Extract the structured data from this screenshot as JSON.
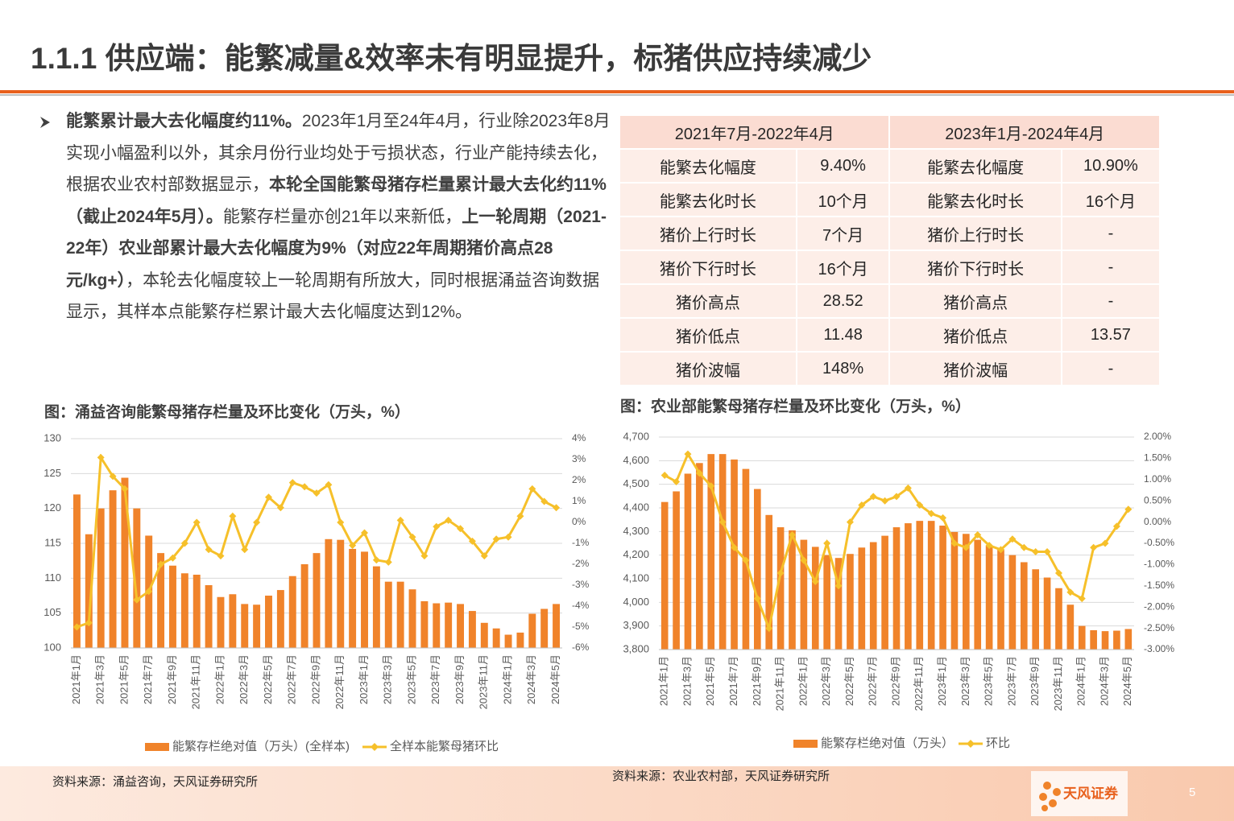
{
  "header": {
    "title": "1.1.1 供应端：能繁减量&效率未有明显提升，标猪供应持续减少"
  },
  "text": {
    "runs": [
      {
        "text": "能繁累计最大去化幅度约11%。",
        "bold": true
      },
      {
        "text": "2023年1月至24年4月，行业除2023年8月实现小幅盈利以外，其余月份行业均处于亏损状态，行业产能持续去化，根据农业农村部数据显示，",
        "bold": false
      },
      {
        "text": "本轮全国能繁母猪存栏量累计最大去化约11%（截止2024年5月）。",
        "bold": true
      },
      {
        "text": "能繁存栏量亦创21年以来新低，",
        "bold": false
      },
      {
        "text": "上一轮周期（2021-22年）农业部累计最大去化幅度为9%（对应22年周期猪价高点28元/kg+）",
        "bold": true
      },
      {
        "text": "，本轮去化幅度较上一轮周期有所放大，同时根据涌益咨询数据显示，其样本点能繁存栏累计最大去化幅度达到12%。",
        "bold": false
      }
    ]
  },
  "table": {
    "header": [
      "2021年7月-2022年4月",
      "2023年1月-2024年4月"
    ],
    "rows": [
      [
        "能繁去化幅度",
        "9.40%",
        "能繁去化幅度",
        "10.90%"
      ],
      [
        "能繁去化时长",
        "10个月",
        "能繁去化时长",
        "16个月"
      ],
      [
        "猪价上行时长",
        "7个月",
        "猪价上行时长",
        "-"
      ],
      [
        "猪价下行时长",
        "16个月",
        "猪价下行时长",
        "-"
      ],
      [
        "猪价高点",
        "28.52",
        "猪价高点",
        "-"
      ],
      [
        "猪价低点",
        "11.48",
        "猪价低点",
        "13.57"
      ],
      [
        "猪价波幅",
        "148%",
        "猪价波幅",
        "-"
      ]
    ]
  },
  "chart_data": [
    {
      "type": "bar",
      "title": "图：涌益咨询能繁母猪存栏量及环比变化（万头，%）",
      "categories": [
        "2021年1月",
        null,
        "2021年3月",
        null,
        "2021年5月",
        null,
        "2021年7月",
        null,
        "2021年9月",
        null,
        "2021年11月",
        null,
        "2022年1月",
        null,
        "2022年3月",
        null,
        "2022年5月",
        null,
        "2022年7月",
        null,
        "2022年9月",
        null,
        "2022年11月",
        null,
        "2023年1月",
        null,
        "2023年3月",
        null,
        "2023年5月",
        null,
        "2023年7月",
        null,
        "2023年9月",
        null,
        "2023年11月",
        null,
        "2024年1月",
        null,
        "2024年3月",
        null,
        "2024年5月"
      ],
      "series": [
        {
          "name": "能繁存栏绝对值（万头）(全样本)",
          "type": "bar",
          "color": "#f0832a",
          "values": [
            122,
            116.3,
            120,
            122.6,
            124.4,
            120,
            116.1,
            113.6,
            111.8,
            110.7,
            110.5,
            109,
            107.3,
            107.7,
            106.3,
            106.2,
            107.5,
            108.3,
            110.3,
            112,
            113.6,
            115.6,
            115.5,
            114.2,
            113.8,
            111.7,
            109.5,
            109.5,
            108.4,
            106.7,
            106.4,
            106.5,
            106.3,
            105.3,
            103.6,
            102.8,
            101.9,
            102.2,
            104.9,
            105.6,
            106.3
          ]
        },
        {
          "name": "全样本能繁母猪环比",
          "type": "line",
          "axis": "y2",
          "color": "#f6c02a",
          "values": [
            -5,
            -4.8,
            3.1,
            2.2,
            1.6,
            -3.7,
            -3.3,
            -2,
            -1.7,
            -1,
            0,
            -1.3,
            -1.6,
            0.3,
            -1.3,
            0,
            1.2,
            0.7,
            1.9,
            1.7,
            1.4,
            1.8,
            0,
            -1.1,
            -0.5,
            -1.8,
            -1.9,
            0.1,
            -0.7,
            -1.6,
            -0.2,
            0.1,
            -0.3,
            -0.9,
            -1.6,
            -0.8,
            -0.7,
            0.3,
            1.6,
            1,
            0.7
          ]
        }
      ],
      "ylim": [
        100,
        130
      ],
      "yticks": [
        100,
        105,
        110,
        115,
        120,
        125,
        130
      ],
      "y2lim": [
        -6,
        4
      ],
      "y2ticks": [
        {
          "value": -6,
          "label": "-6%"
        },
        {
          "value": -5,
          "label": "-5%"
        },
        {
          "value": -4,
          "label": "-4%"
        },
        {
          "value": -3,
          "label": "-3%"
        },
        {
          "value": -2,
          "label": "-2%"
        },
        {
          "value": -1,
          "label": "-1%"
        },
        {
          "value": 0,
          "label": "0%"
        },
        {
          "value": 1,
          "label": "1%"
        },
        {
          "value": 2,
          "label": "2%"
        },
        {
          "value": 3,
          "label": "3%"
        },
        {
          "value": 4,
          "label": "4%"
        }
      ],
      "grid": true,
      "legend": "bottom",
      "source": "资料来源：涌益咨询，天风证券研究所"
    },
    {
      "type": "bar",
      "title": "图：农业部能繁母猪存栏量及环比变化（万头，%）",
      "categories": [
        "2021年1月",
        null,
        "2021年3月",
        null,
        "2021年5月",
        null,
        "2021年7月",
        null,
        "2021年9月",
        null,
        "2021年11月",
        null,
        "2022年1月",
        null,
        "2022年3月",
        null,
        "2022年5月",
        null,
        "2022年7月",
        null,
        "2022年9月",
        null,
        "2022年11月",
        null,
        "2023年1月",
        null,
        "2023年3月",
        null,
        "2023年5月",
        null,
        "2023年7月",
        null,
        "2023年9月",
        null,
        "2023年11月",
        null,
        "2024年1月",
        null,
        "2024年3月",
        null,
        "2024年5月"
      ],
      "series": [
        {
          "name": "能繁存栏绝对值（万头）",
          "type": "bar",
          "color": "#f0832a",
          "values": [
            4425,
            4470,
            4545,
            4590,
            4628,
            4628,
            4605,
            4565,
            4480,
            4370,
            4318,
            4305,
            4265,
            4235,
            4200,
            4188,
            4205,
            4232,
            4255,
            4282,
            4318,
            4335,
            4345,
            4345,
            4325,
            4298,
            4290,
            4265,
            4240,
            4225,
            4200,
            4170,
            4140,
            4105,
            4060,
            3990,
            3900,
            3882,
            3878,
            3880,
            3887
          ]
        },
        {
          "name": "环比",
          "type": "line",
          "axis": "y2",
          "color": "#f6c02a",
          "values": [
            1.1,
            0.95,
            1.6,
            1.15,
            0.85,
            0,
            -0.6,
            -0.9,
            -1.8,
            -2.5,
            -1.2,
            -0.3,
            -0.9,
            -1.4,
            -0.5,
            -1.5,
            0,
            0.4,
            0.6,
            0.5,
            0.6,
            0.8,
            0.4,
            0.2,
            0.1,
            -0.5,
            -0.6,
            -0.3,
            -0.55,
            -0.65,
            -0.4,
            -0.6,
            -0.7,
            -0.7,
            -1.2,
            -1.65,
            -1.8,
            -0.6,
            -0.5,
            -0.1,
            0.3
          ]
        }
      ],
      "ylim": [
        3800,
        4700
      ],
      "yticks": [
        {
          "value": 3800,
          "label": "3,800"
        },
        {
          "value": 3900,
          "label": "3,900"
        },
        {
          "value": 4000,
          "label": "4,000"
        },
        {
          "value": 4100,
          "label": "4,100"
        },
        {
          "value": 4200,
          "label": "4,200"
        },
        {
          "value": 4300,
          "label": "4,300"
        },
        {
          "value": 4400,
          "label": "4,400"
        },
        {
          "value": 4500,
          "label": "4,500"
        },
        {
          "value": 4600,
          "label": "4,600"
        },
        {
          "value": 4700,
          "label": "4,700"
        }
      ],
      "y2lim": [
        -3,
        2
      ],
      "y2ticks": [
        {
          "value": -3,
          "label": "-3.00%"
        },
        {
          "value": -2.5,
          "label": "-2.50%"
        },
        {
          "value": -2,
          "label": "-2.00%"
        },
        {
          "value": -1.5,
          "label": "-1.50%"
        },
        {
          "value": -1,
          "label": "-1.00%"
        },
        {
          "value": -0.5,
          "label": "-0.50%"
        },
        {
          "value": 0,
          "label": "0.00%"
        },
        {
          "value": 0.5,
          "label": "0.50%"
        },
        {
          "value": 1,
          "label": "1.00%"
        },
        {
          "value": 1.5,
          "label": "1.50%"
        },
        {
          "value": 2,
          "label": "2.00%"
        }
      ],
      "grid": true,
      "legend": "bottom",
      "source": "资料来源：农业农村部，天风证券研究所"
    }
  ],
  "footer": {
    "brand": "天风证券",
    "page": 5
  }
}
